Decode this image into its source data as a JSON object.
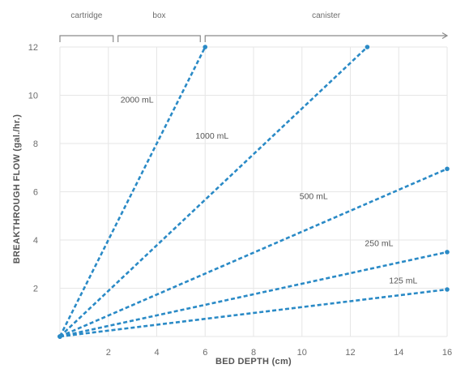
{
  "chart_data": {
    "type": "line",
    "xlabel": "BED DEPTH (cm)",
    "ylabel": "BREAKTHROUGH FLOW (gal./hr.)",
    "xlim": [
      0,
      16
    ],
    "ylim": [
      0,
      12
    ],
    "x_ticks": [
      2,
      4,
      6,
      8,
      10,
      12,
      14,
      16
    ],
    "y_ticks": [
      2,
      4,
      6,
      8,
      10,
      12
    ],
    "grid": true,
    "line_color": "#2a8ac6",
    "line_style": "dashed",
    "series": [
      {
        "name": "2000 mL",
        "x": [
          0,
          6
        ],
        "y": [
          0,
          12
        ]
      },
      {
        "name": "1000 mL",
        "x": [
          0,
          12.7
        ],
        "y": [
          0,
          12
        ]
      },
      {
        "name": "500 mL",
        "x": [
          0,
          16
        ],
        "y": [
          0,
          6.95
        ]
      },
      {
        "name": "250 mL",
        "x": [
          0,
          16
        ],
        "y": [
          0,
          3.5
        ]
      },
      {
        "name": "125 mL",
        "x": [
          0,
          16
        ],
        "y": [
          0,
          1.95
        ]
      }
    ],
    "label_positions": [
      {
        "series": "2000 mL",
        "x": 2.5,
        "y": 9.7
      },
      {
        "series": "1000 mL",
        "x": 5.6,
        "y": 8.2
      },
      {
        "name": "500 mL",
        "series": "500 mL",
        "x": 9.9,
        "y": 5.7
      },
      {
        "series": "250 mL",
        "x": 12.6,
        "y": 3.75
      },
      {
        "series": "125 mL",
        "x": 13.6,
        "y": 2.2
      }
    ],
    "ranges": [
      {
        "label": "cartridge",
        "from": 0,
        "to": 2.2
      },
      {
        "label": "box",
        "from": 2.4,
        "to": 5.8
      },
      {
        "label": "canister",
        "from": 6.0,
        "to": 16.0,
        "arrow": true
      }
    ]
  }
}
